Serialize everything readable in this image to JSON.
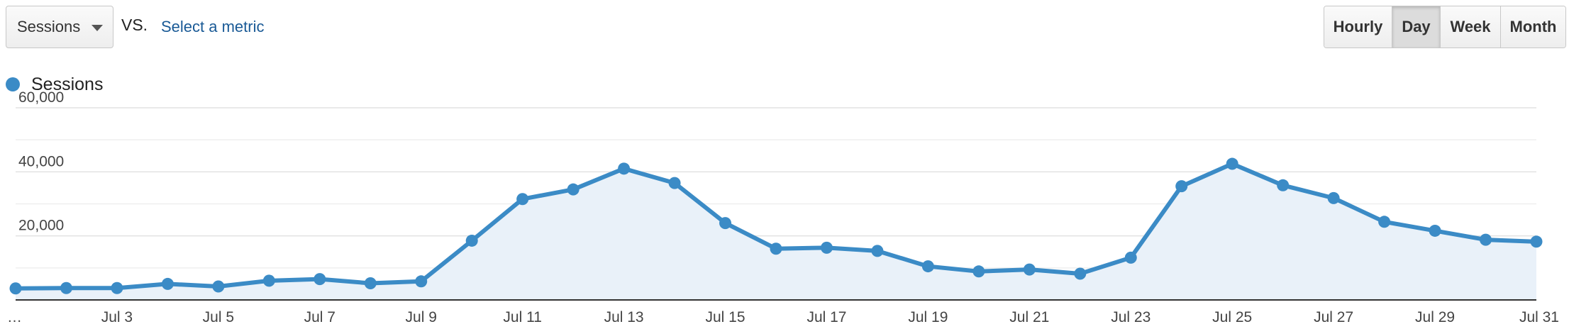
{
  "toolbar": {
    "metric_select": "Sessions",
    "vs_label": "VS.",
    "select_metric_link": "Select a metric",
    "granularity": [
      {
        "label": "Hourly",
        "active": false
      },
      {
        "label": "Day",
        "active": true
      },
      {
        "label": "Week",
        "active": false
      },
      {
        "label": "Month",
        "active": false
      }
    ]
  },
  "colors": {
    "series": "#3b8bc6",
    "area": "#e9f1f9"
  },
  "chart_data": {
    "type": "line",
    "legend_placement": "top-left",
    "grid": true,
    "x": [
      "Jul 1",
      "Jul 2",
      "Jul 3",
      "Jul 4",
      "Jul 5",
      "Jul 6",
      "Jul 7",
      "Jul 8",
      "Jul 9",
      "Jul 10",
      "Jul 11",
      "Jul 12",
      "Jul 13",
      "Jul 14",
      "Jul 15",
      "Jul 16",
      "Jul 17",
      "Jul 18",
      "Jul 19",
      "Jul 20",
      "Jul 21",
      "Jul 22",
      "Jul 23",
      "Jul 24",
      "Jul 25",
      "Jul 26",
      "Jul 27",
      "Jul 28",
      "Jul 29",
      "Jul 30",
      "Jul 31"
    ],
    "x_tick_labels": [
      "…",
      "Jul 3",
      "Jul 5",
      "Jul 7",
      "Jul 9",
      "Jul 11",
      "Jul 13",
      "Jul 15",
      "Jul 17",
      "Jul 19",
      "Jul 21",
      "Jul 23",
      "Jul 25",
      "Jul 27",
      "Jul 29",
      "Jul 31"
    ],
    "y_tick_labels": [
      "20,000",
      "40,000",
      "60,000"
    ],
    "ylim": [
      0,
      60000
    ],
    "series": [
      {
        "name": "Sessions",
        "values": [
          3600,
          3700,
          3700,
          5000,
          4200,
          6000,
          6500,
          5200,
          5800,
          18500,
          31500,
          34500,
          41000,
          36500,
          24000,
          16000,
          16300,
          15300,
          10500,
          8900,
          9500,
          8200,
          13200,
          35500,
          42500,
          35800,
          31800,
          24400,
          21600,
          18800,
          18200
        ]
      }
    ]
  }
}
